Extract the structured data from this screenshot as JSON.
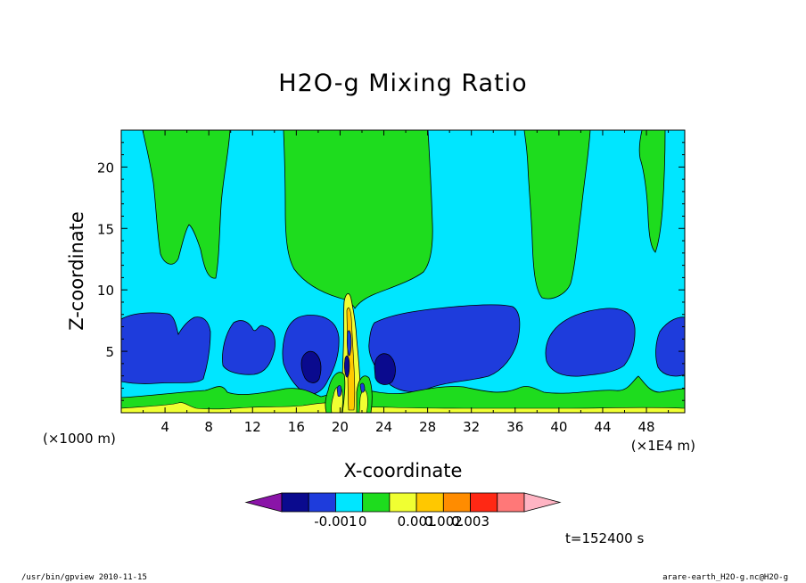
{
  "chart_data": {
    "type": "heatmap",
    "title": "H2O-g Mixing Ratio",
    "xlabel": "X-coordinate",
    "ylabel": "Z-coordinate",
    "x_unit": "(×1000 m)",
    "x_scale": "(×1E4 m)",
    "xlim": [
      0,
      51.5
    ],
    "ylim": [
      0,
      23
    ],
    "xticks": [
      "4",
      "8",
      "12",
      "16",
      "20",
      "24",
      "28",
      "32",
      "36",
      "40",
      "44",
      "48"
    ],
    "yticks": [
      "5",
      "10",
      "15",
      "20"
    ],
    "colorbar": {
      "labels": [
        "-0.001",
        "0",
        "0.001",
        "0.002",
        "0.003"
      ],
      "colors": [
        "#8a14a8",
        "#0a0a8e",
        "#1e3cdc",
        "#00e6ff",
        "#1edc1e",
        "#f0ff32",
        "#ffc800",
        "#ff8c00",
        "#ff2814",
        "#ff7878",
        "#ffb4c3"
      ]
    },
    "time_label": "t=152400 s",
    "series": [
      {
        "name": "-0.001",
        "color": "#1e3cdc"
      },
      {
        "name": "0",
        "color": "#00e6ff"
      },
      {
        "name": "0.001",
        "color": "#1edc1e"
      },
      {
        "name": "0.002",
        "color": "#f0ff32"
      },
      {
        "name": "0.003",
        "color": "#ffc800"
      }
    ]
  },
  "footer": {
    "left": "/usr/bin/gpview   2010-11-15",
    "right": "arare-earth_H2O-g.nc@H2O-g"
  }
}
